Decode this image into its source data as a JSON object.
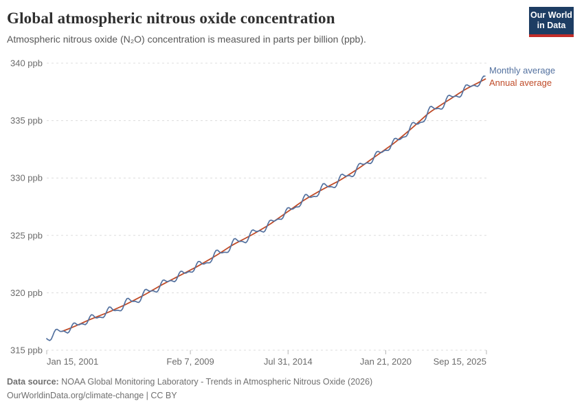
{
  "header": {
    "title": "Global atmospheric nitrous oxide concentration",
    "subtitle": "Atmospheric nitrous oxide (N₂O) concentration is measured in parts per billion (ppb)."
  },
  "logo": {
    "line1": "Our World",
    "line2": "in Data",
    "bg_color": "#1d3d63",
    "bar_color": "#c32d29"
  },
  "legend": [
    {
      "label": "Monthly average",
      "color": "#53719f"
    },
    {
      "label": "Annual average",
      "color": "#bf4a27"
    }
  ],
  "footer": {
    "source_label": "Data source:",
    "source_text": " NOAA Global Monitoring Laboratory - Trends in Atmospheric Nitrous Oxide (2026)",
    "link_text": "OurWorldinData.org/climate-change",
    "separator": " | ",
    "license": "CC BY"
  },
  "chart_data": {
    "type": "line",
    "title": "Global atmospheric nitrous oxide concentration",
    "xlabel": "",
    "ylabel": "ppb",
    "ylim": [
      315,
      340
    ],
    "x_domain_years": [
      2001.042,
      2025.708
    ],
    "grid": "dashed",
    "legend_position": "right-of-line-ends",
    "colors": {
      "monthly": "#53719f",
      "annual": "#bf4a27",
      "gridline": "#dcdcdc",
      "tick": "#b5b5b5"
    },
    "y_ticks": [
      {
        "value": 315,
        "label": "315 ppb"
      },
      {
        "value": 320,
        "label": "320 ppb"
      },
      {
        "value": 325,
        "label": "325 ppb"
      },
      {
        "value": 330,
        "label": "330 ppb"
      },
      {
        "value": 335,
        "label": "335 ppb"
      },
      {
        "value": 340,
        "label": "340 ppb"
      }
    ],
    "x_ticks": [
      {
        "year": 2001.042,
        "label": "Jan 15, 2001",
        "align": "start"
      },
      {
        "year": 2009.1,
        "label": "Feb 7, 2009",
        "align": "middle"
      },
      {
        "year": 2014.58,
        "label": "Jul 31, 2014",
        "align": "middle"
      },
      {
        "year": 2020.06,
        "label": "Jan 21, 2020",
        "align": "middle"
      },
      {
        "year": 2025.708,
        "label": "Sep 15, 2025",
        "align": "end"
      }
    ],
    "annual_averages": {
      "name": "Annual average",
      "years": [
        2001,
        2002,
        2003,
        2004,
        2005,
        2006,
        2007,
        2008,
        2009,
        2010,
        2011,
        2012,
        2013,
        2014,
        2015,
        2016,
        2017,
        2018,
        2019,
        2020,
        2021,
        2022,
        2023,
        2024,
        2025
      ],
      "values": [
        316.4,
        317.0,
        317.7,
        318.3,
        319.0,
        319.8,
        320.7,
        321.5,
        322.3,
        323.2,
        324.2,
        325.0,
        325.9,
        327.0,
        328.1,
        329.0,
        329.8,
        330.8,
        331.9,
        333.0,
        334.3,
        335.7,
        336.7,
        337.7,
        338.5
      ],
      "plotted_at": "mid-year",
      "line_start_year": 2001.9,
      "line_end_year": 2025.708
    },
    "monthly_series": {
      "name": "Monthly average",
      "start": 2001.042,
      "end": 2025.708,
      "step_years": 0.083333,
      "start_value_ppb": 316.2,
      "end_value_ppb": 339.0,
      "model": "annual_trend_plus_seasonal",
      "seasonal": {
        "a1": 0.3,
        "phase1": 0.37,
        "a2": 0.13,
        "phase2": 1.2
      },
      "noise": {
        "amp": 0.07,
        "freq": 5.17
      }
    }
  }
}
